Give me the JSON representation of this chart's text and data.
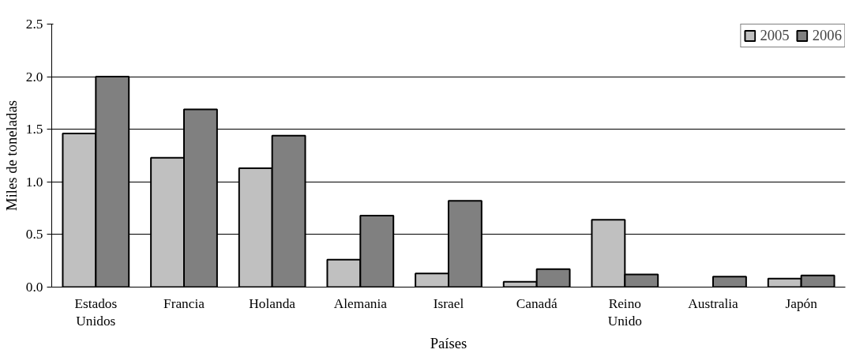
{
  "chart_data": {
    "type": "bar",
    "xlabel": "Países",
    "ylabel": "Miles de toneladas",
    "categories": [
      "Estados Unidos",
      "Francia",
      "Holanda",
      "Alemania",
      "Israel",
      "Canadá",
      "Reino Unido",
      "Australia",
      "Japón"
    ],
    "series": [
      {
        "name": "2005",
        "color": "#c0c0c0",
        "values": [
          1.46,
          1.23,
          1.13,
          0.26,
          0.13,
          0.05,
          0.64,
          null,
          0.08
        ]
      },
      {
        "name": "2006",
        "color": "#808080",
        "values": [
          2.0,
          1.69,
          1.44,
          0.68,
          0.82,
          0.17,
          0.12,
          0.1,
          0.11
        ]
      }
    ],
    "ylim": [
      0,
      2.5
    ],
    "yticks": [
      {
        "value": 0,
        "label": "0.0"
      },
      {
        "value": 0.5,
        "label": "0.5"
      },
      {
        "value": 1,
        "label": "1.0"
      },
      {
        "value": 1.5,
        "label": "1.5"
      },
      {
        "value": 2,
        "label": "2.0"
      },
      {
        "value": 2.5,
        "label": "2.5"
      }
    ],
    "grid": "y",
    "legend": "top right"
  }
}
